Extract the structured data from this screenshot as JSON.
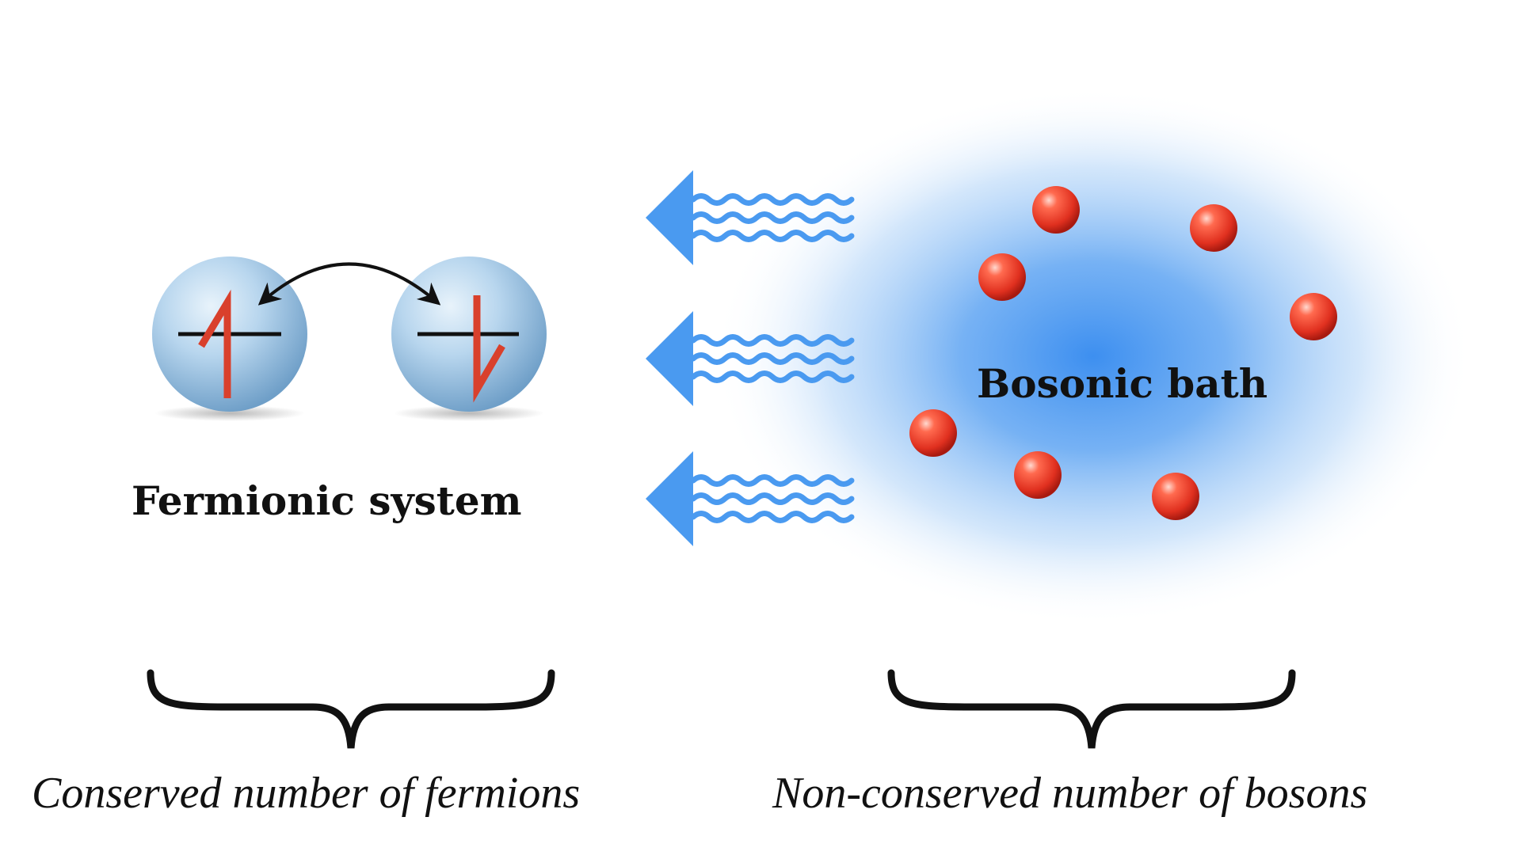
{
  "labels": {
    "fermionic_system": "Fermionic system",
    "bosonic_bath": "Bosonic bath",
    "conserved": "Conserved number of fermions",
    "non_conserved": "Non-conserved number of bosons"
  },
  "colors": {
    "bath_blue": "#3d8ff0",
    "arrow_blue": "#4a9af0",
    "boson_red": "#e8382a",
    "spin_red": "#d9402c",
    "site_blue": "#9cc4e4",
    "ink": "#111111"
  },
  "icons": {
    "spin_up": "spin-up-arrow",
    "spin_down": "spin-down-arrow",
    "hopping": "double-headed-arrow",
    "emission": "wavy-arrow"
  }
}
